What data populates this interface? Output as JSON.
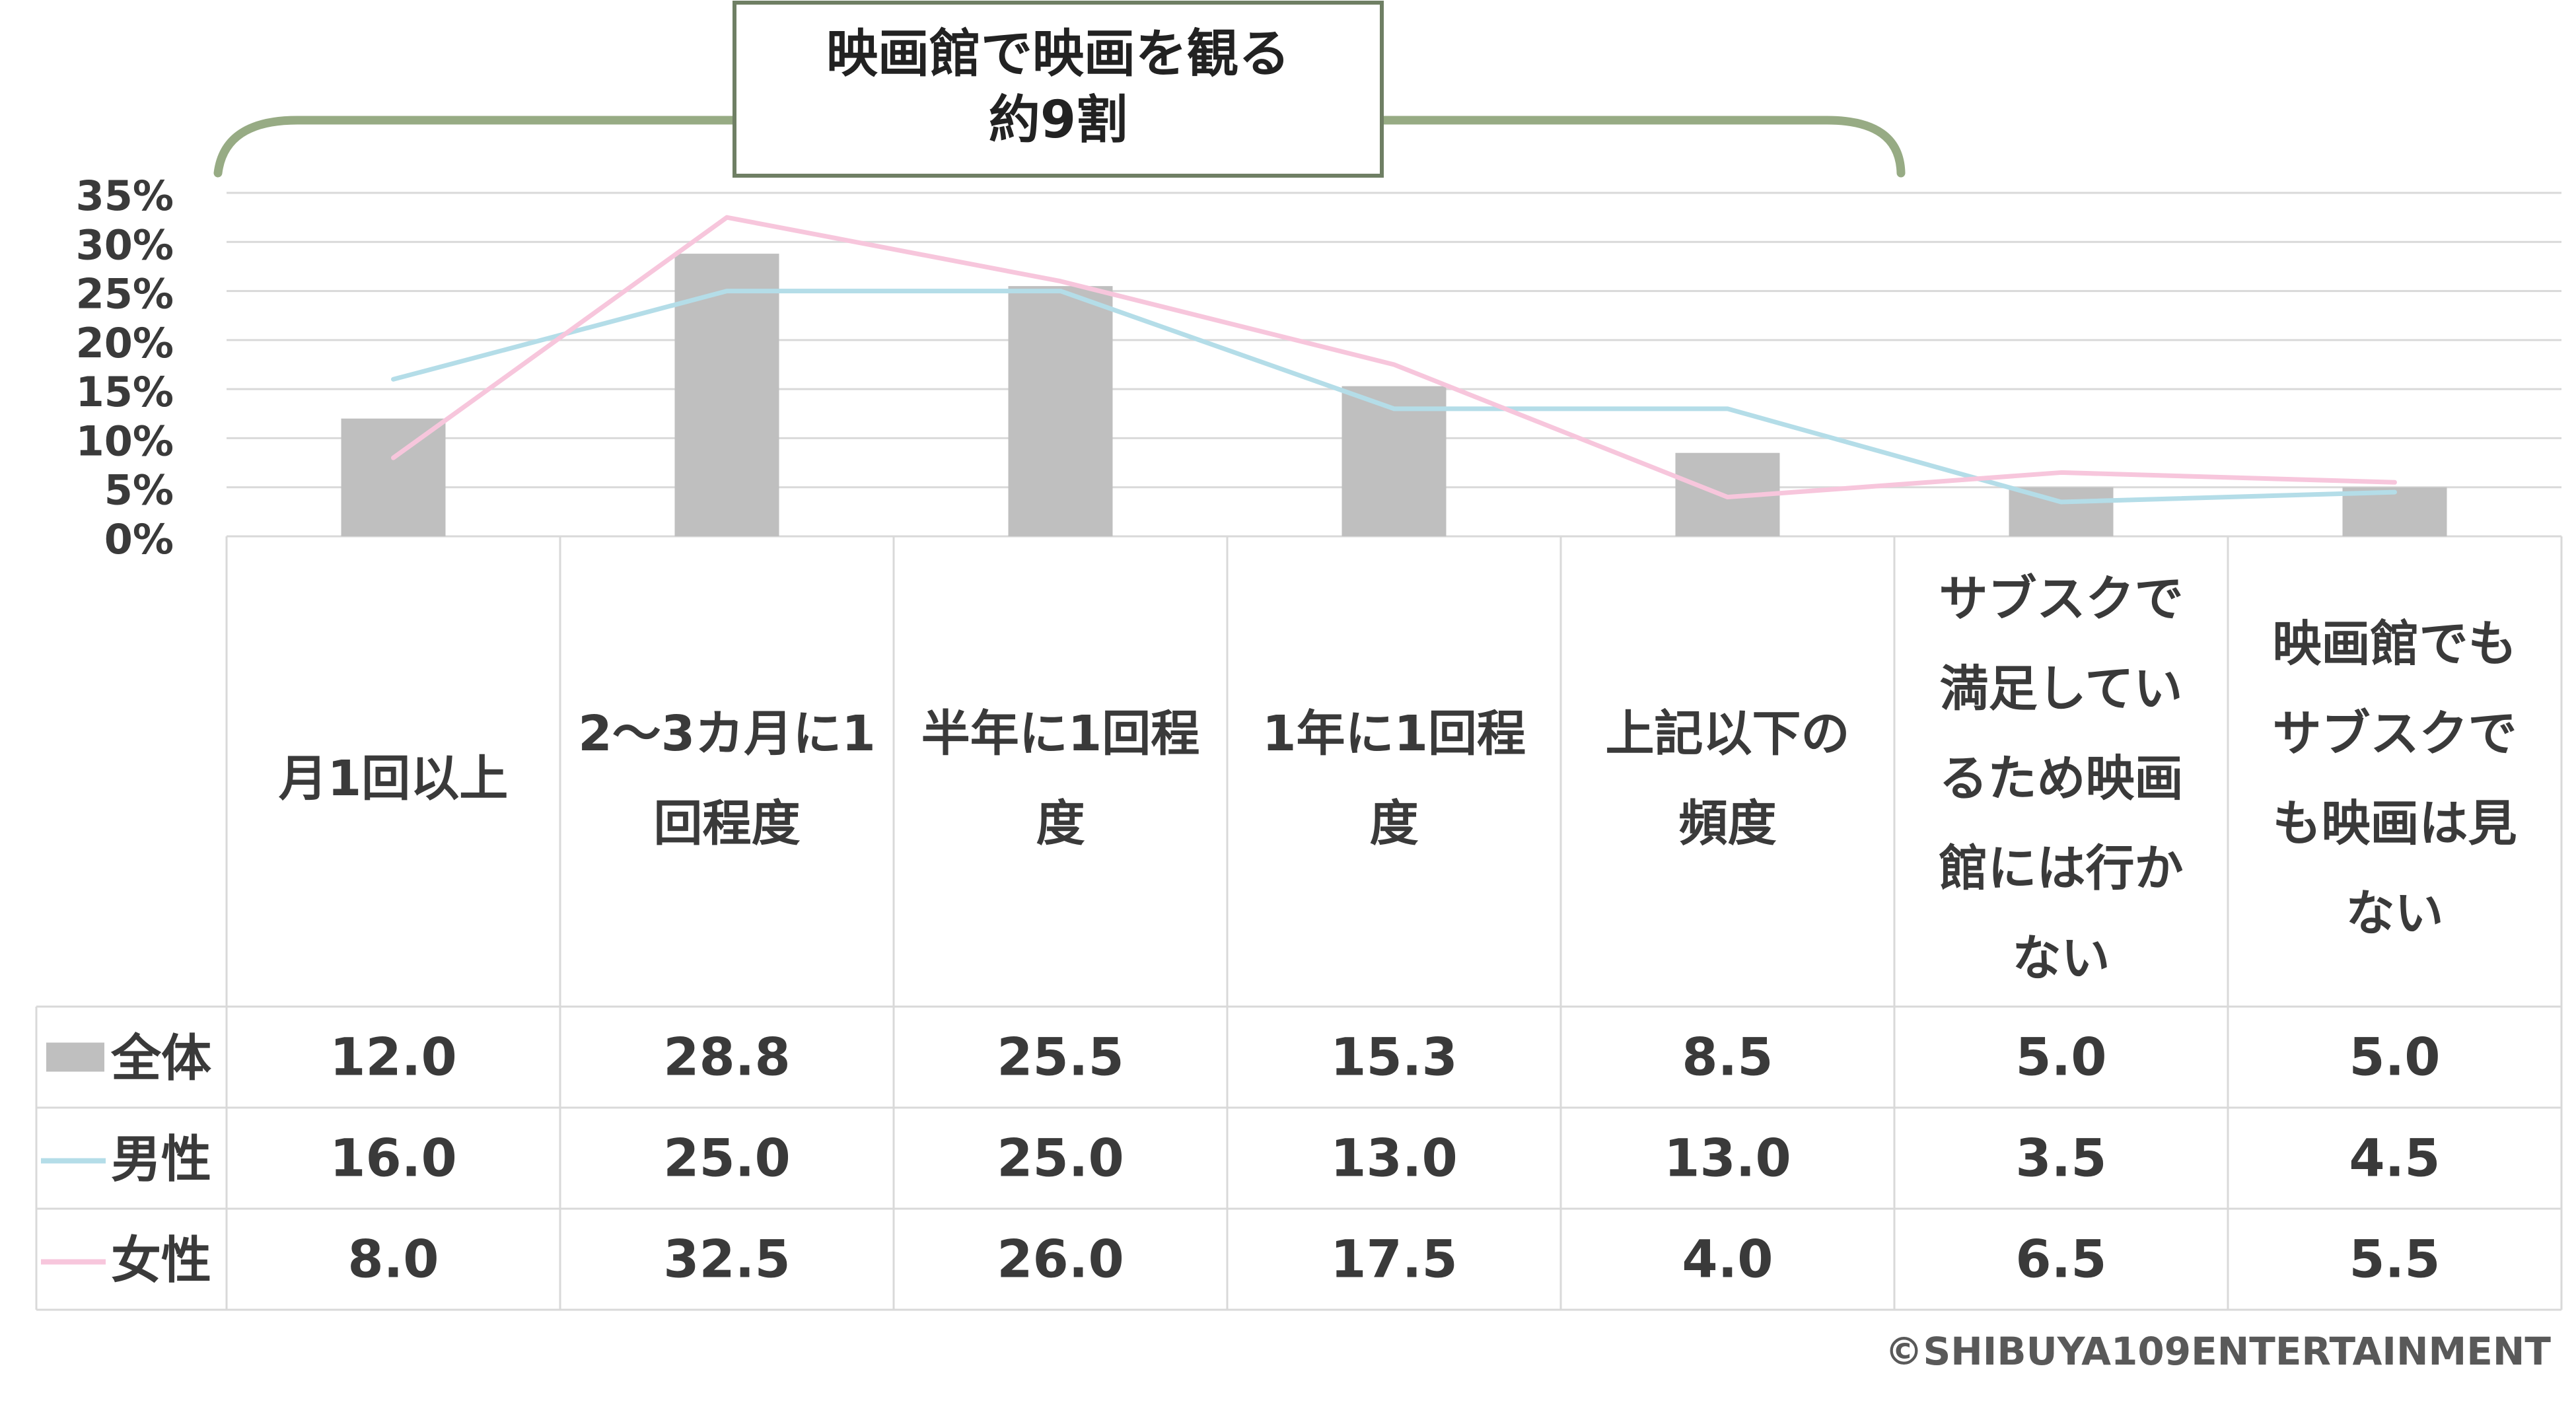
{
  "chart_data": {
    "type": "bar",
    "annotation": {
      "text_line1": "映画館で映画を観る",
      "text_line2": "約9割"
    },
    "y_ticks": [
      "35%",
      "30%",
      "25%",
      "20%",
      "15%",
      "10%",
      "5%",
      "0%"
    ],
    "ylim": [
      0,
      35
    ],
    "grid": true,
    "categories": [
      [
        "月1回以上"
      ],
      [
        "2〜3カ月に1",
        "回程度"
      ],
      [
        "半年に1回程",
        "度"
      ],
      [
        "1年に1回程",
        "度"
      ],
      [
        "上記以下の",
        "頻度"
      ],
      [
        "サブスクで",
        "満足してい",
        "るため映画",
        "館には行か",
        "ない"
      ],
      [
        "映画館でも",
        "サブスクで",
        "も映画は見",
        "ない"
      ]
    ],
    "series": [
      {
        "name": "全体",
        "kind": "bar",
        "color": "#bfbfbf",
        "values": [
          12.0,
          28.8,
          25.5,
          15.3,
          8.5,
          5.0,
          5.0
        ],
        "labels": [
          "12.0",
          "28.8",
          "25.5",
          "15.3",
          "8.5",
          "5.0",
          "5.0"
        ]
      },
      {
        "name": "男性",
        "kind": "line",
        "color": "#b4dde8",
        "values": [
          16.0,
          25.0,
          25.0,
          13.0,
          13.0,
          3.5,
          4.5
        ],
        "labels": [
          "16.0",
          "25.0",
          "25.0",
          "13.0",
          "13.0",
          "3.5",
          "4.5"
        ]
      },
      {
        "name": "女性",
        "kind": "line",
        "color": "#f7c6dc",
        "values": [
          8.0,
          32.5,
          26.0,
          17.5,
          4.0,
          6.5,
          5.5
        ],
        "labels": [
          "8.0",
          "32.5",
          "26.0",
          "17.5",
          "4.0",
          "6.5",
          "5.5"
        ]
      }
    ],
    "colors": {
      "bracket": "#97ab84",
      "box_border": "#6f7f64",
      "grid": "#d9d9d9",
      "text": "#3a3a3a"
    }
  },
  "copyright": "©SHIBUYA109ENTERTAINMENT"
}
